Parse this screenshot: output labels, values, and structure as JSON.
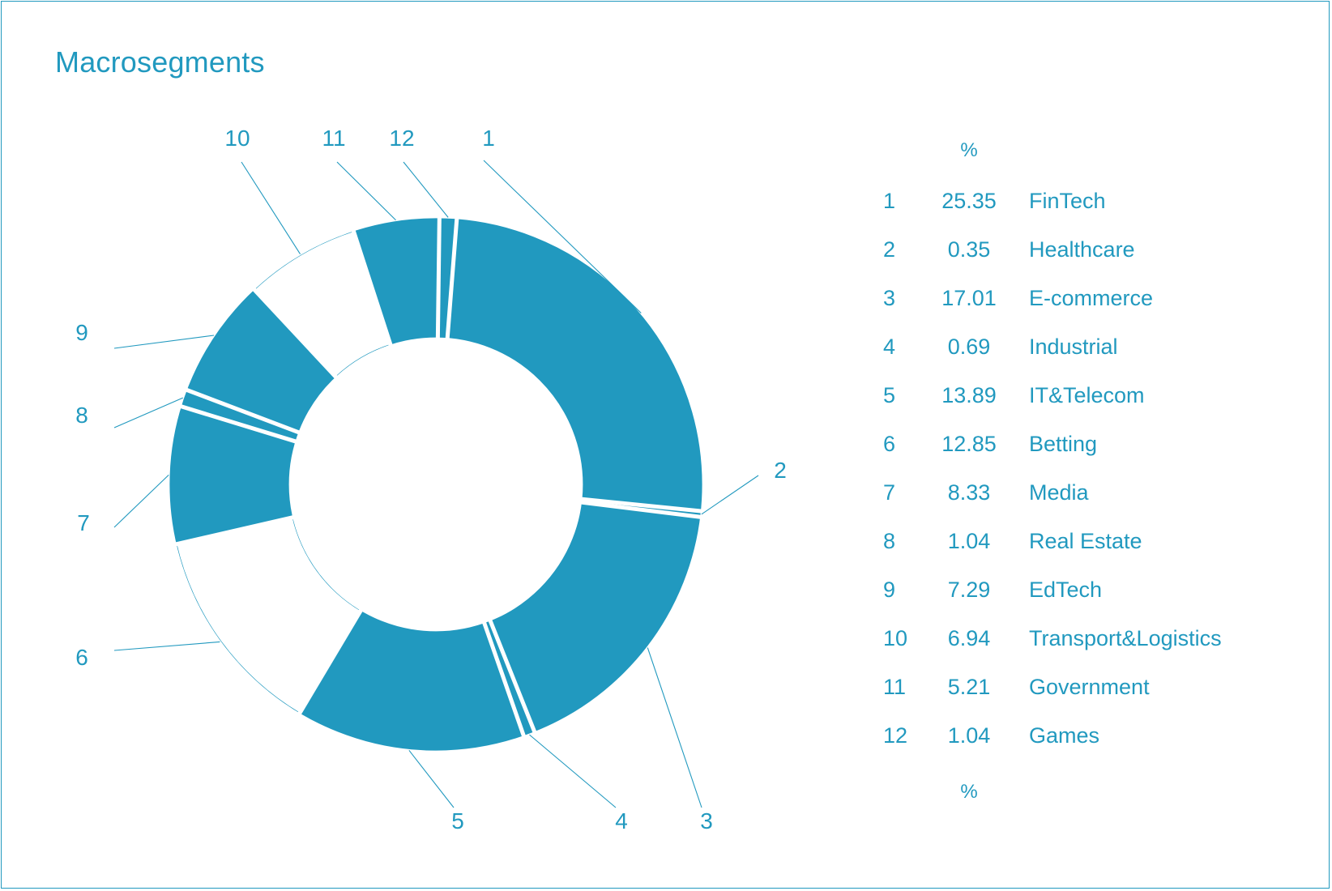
{
  "chart_data": {
    "type": "pie",
    "title": "Macrosegments",
    "unit_label": "%",
    "slices": [
      {
        "id": "1",
        "label": "FinTech",
        "value": "25.35",
        "color": "#2199bf"
      },
      {
        "id": "2",
        "label": "Healthcare",
        "value": "0.35",
        "color": "#2199bf"
      },
      {
        "id": "3",
        "label": "E-commerce",
        "value": "17.01",
        "color": "#2199bf"
      },
      {
        "id": "4",
        "label": "Industrial",
        "value": "0.69",
        "color": "#2199bf"
      },
      {
        "id": "5",
        "label": "IT&Telecom",
        "value": "13.89",
        "color": "#2199bf"
      },
      {
        "id": "6",
        "label": "Betting",
        "value": "12.85",
        "color": "#ffffff"
      },
      {
        "id": "7",
        "label": "Media",
        "value": "8.33",
        "color": "#2199bf"
      },
      {
        "id": "8",
        "label": "Real Estate",
        "value": "1.04",
        "color": "#2199bf"
      },
      {
        "id": "9",
        "label": "EdTech",
        "value": "7.29",
        "color": "#2199bf"
      },
      {
        "id": "10",
        "label": "Transport&Logistics",
        "value": "6.94",
        "color": "#ffffff"
      },
      {
        "id": "11",
        "label": "Government",
        "value": "5.21",
        "color": "#2199bf"
      },
      {
        "id": "12",
        "label": "Games",
        "value": "1.04",
        "color": "#2199bf"
      }
    ]
  }
}
